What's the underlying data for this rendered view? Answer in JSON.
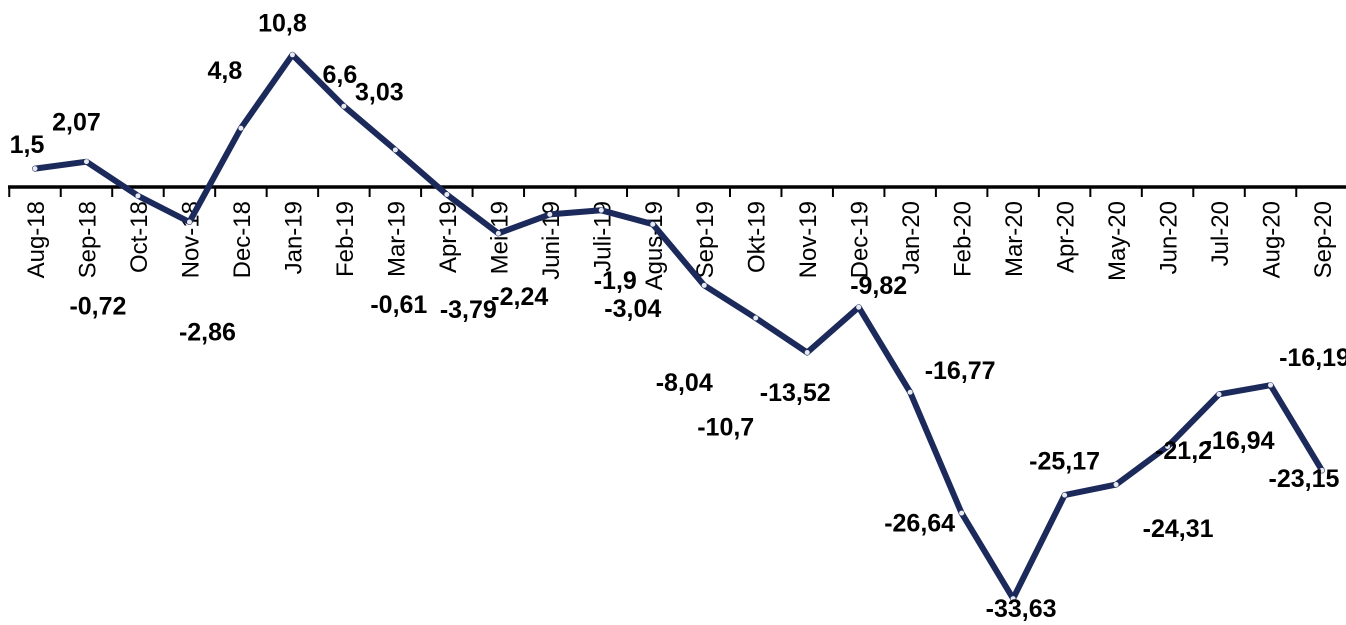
{
  "chart_data": {
    "type": "line",
    "title": "",
    "xlabel": "",
    "ylabel": "",
    "ylim": [
      -35,
      13
    ],
    "grid": false,
    "legend": "none",
    "colors": {
      "line": "#1b2a5b",
      "axis": "#000000"
    },
    "categories": [
      "Aug-18",
      "Sep-18",
      "Oct-18",
      "Nov-18",
      "Dec-18",
      "Jan-19",
      "Feb-19",
      "Mar-19",
      "Apr-19",
      "Mei-19",
      "Juni-19",
      "Juli-19",
      "Agus-19",
      "Sep-19",
      "Okt-19",
      "Nov-19",
      "Dec-19",
      "Jan-20",
      "Feb-20",
      "Mar-20",
      "Apr-20",
      "May-20",
      "Jun-20",
      "Jul-20",
      "Aug-20",
      "Sep-20"
    ],
    "series": [
      {
        "values": [
          1.5,
          2.07,
          -0.72,
          -2.86,
          4.8,
          10.8,
          6.6,
          3.03,
          -0.61,
          -3.79,
          -2.24,
          -1.9,
          -3.04,
          -8.04,
          -10.7,
          -13.52,
          -9.82,
          -16.77,
          -26.64,
          -33.63,
          -25.17,
          -24.31,
          -21.2,
          -16.94,
          -16.19,
          -23.15
        ]
      }
    ],
    "data_labels": [
      "1,5",
      "2,07",
      "-0,72",
      "-2,86",
      "4,8",
      "10,8",
      "6,6",
      "3,03",
      "-0,61",
      "-3,79",
      "-2,24",
      "-1,9",
      "-3,04",
      "-8,04",
      "-10,7",
      "-13,52",
      "-9,82",
      "-16,77",
      "-26,64",
      "-33,63",
      "-25,17",
      "-24,31",
      "-21,2",
      "-16,94",
      "-16,19",
      "-23,15"
    ]
  }
}
